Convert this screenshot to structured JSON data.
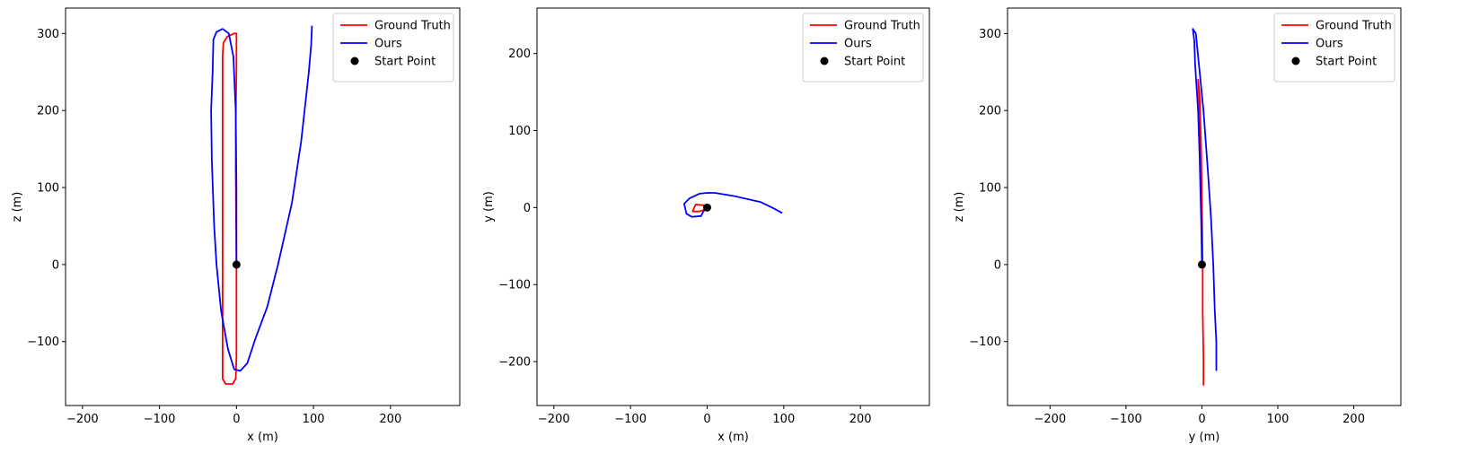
{
  "chart_data": [
    {
      "type": "line",
      "xlabel": "x (m)",
      "ylabel": "z (m)",
      "xlim": [
        -222,
        290
      ],
      "ylim": [
        -183,
        333
      ],
      "xticks": [
        -200,
        -100,
        0,
        100,
        200
      ],
      "yticks": [
        -100,
        0,
        100,
        200,
        300
      ],
      "xtick_labels": [
        "−200",
        "−100",
        "0",
        "100",
        "200"
      ],
      "ytick_labels": [
        "−100",
        "0",
        "100",
        "200",
        "300"
      ],
      "legend": {
        "position": "top-right",
        "entries": [
          "Ground Truth",
          "Ours",
          "Start Point"
        ]
      },
      "series": [
        {
          "name": "Ground Truth",
          "color": "#ff0000",
          "points": [
            [
              0,
              0
            ],
            [
              -0.5,
              60
            ],
            [
              -1,
              120
            ],
            [
              -1,
              170
            ],
            [
              -0.5,
              220
            ],
            [
              0,
              255
            ],
            [
              0,
              300
            ],
            [
              -3,
              300
            ],
            [
              -12,
              296
            ],
            [
              -17,
              288
            ],
            [
              -18,
              270
            ],
            [
              -18,
              200
            ],
            [
              -18,
              100
            ],
            [
              -18,
              0
            ],
            [
              -18,
              -100
            ],
            [
              -18,
              -148
            ],
            [
              -14,
              -155
            ],
            [
              -5,
              -155
            ],
            [
              -1,
              -148
            ],
            [
              0,
              -120
            ],
            [
              0,
              -60
            ],
            [
              0,
              0
            ]
          ]
        },
        {
          "name": "Ours",
          "color": "#0000ff",
          "points": [
            [
              0,
              0
            ],
            [
              0,
              100
            ],
            [
              -1,
              200
            ],
            [
              -4,
              270
            ],
            [
              -10,
              300
            ],
            [
              -18,
              306
            ],
            [
              -26,
              302
            ],
            [
              -30,
              292
            ],
            [
              -31,
              250
            ],
            [
              -33,
              200
            ],
            [
              -32,
              135
            ],
            [
              -29,
              50
            ],
            [
              -26,
              0
            ],
            [
              -20,
              -60
            ],
            [
              -11,
              -110
            ],
            [
              -3,
              -136
            ],
            [
              5,
              -138
            ],
            [
              14,
              -128
            ],
            [
              25,
              -95
            ],
            [
              40,
              -55
            ],
            [
              54,
              0
            ],
            [
              72,
              80
            ],
            [
              84,
              160
            ],
            [
              94,
              250
            ],
            [
              97,
              285
            ],
            [
              98,
              310
            ]
          ]
        },
        {
          "name": "Start Point",
          "color": "#000000",
          "marker": "circle",
          "points": [
            [
              0,
              0
            ]
          ]
        }
      ]
    },
    {
      "type": "line",
      "xlabel": "x (m)",
      "ylabel": "y (m)",
      "xlim": [
        -222,
        290
      ],
      "ylim": [
        -257,
        259
      ],
      "xticks": [
        -200,
        -100,
        0,
        100,
        200
      ],
      "yticks": [
        -200,
        -100,
        0,
        100,
        200
      ],
      "xtick_labels": [
        "−200",
        "−100",
        "0",
        "100",
        "200"
      ],
      "ytick_labels": [
        "−200",
        "−100",
        "0",
        "100",
        "200"
      ],
      "legend": {
        "position": "top-right",
        "entries": [
          "Ground Truth",
          "Ours",
          "Start Point"
        ]
      },
      "series": [
        {
          "name": "Ground Truth",
          "color": "#ff0000",
          "points": [
            [
              0,
              0
            ],
            [
              -5,
              3
            ],
            [
              -15,
              4
            ],
            [
              -19,
              -5
            ],
            [
              -10,
              -5
            ],
            [
              -4,
              -3
            ],
            [
              0,
              0
            ]
          ]
        },
        {
          "name": "Ours",
          "color": "#0000ff",
          "points": [
            [
              0,
              0
            ],
            [
              -5,
              -5
            ],
            [
              -8,
              -11
            ],
            [
              -20,
              -12
            ],
            [
              -27,
              -8
            ],
            [
              -30,
              5
            ],
            [
              -23,
              12
            ],
            [
              -10,
              18
            ],
            [
              0,
              19
            ],
            [
              10,
              19
            ],
            [
              35,
              15
            ],
            [
              70,
              7
            ],
            [
              85,
              0
            ],
            [
              98,
              -7
            ]
          ]
        },
        {
          "name": "Start Point",
          "color": "#000000",
          "marker": "circle",
          "points": [
            [
              0,
              0
            ]
          ]
        }
      ]
    },
    {
      "type": "line",
      "xlabel": "y (m)",
      "ylabel": "z (m)",
      "xlim": [
        -256,
        262
      ],
      "ylim": [
        -183,
        333
      ],
      "xticks": [
        -200,
        -100,
        0,
        100,
        200
      ],
      "yticks": [
        -100,
        0,
        100,
        200,
        300
      ],
      "xtick_labels": [
        "−200",
        "−100",
        "0",
        "100",
        "200"
      ],
      "ytick_labels": [
        "−100",
        "0",
        "100",
        "200",
        "300"
      ],
      "legend": {
        "position": "top-right",
        "entries": [
          "Ground Truth",
          "Ours",
          "Start Point"
        ]
      },
      "series": [
        {
          "name": "Ground Truth",
          "color": "#ff0000",
          "points": [
            [
              0,
              0
            ],
            [
              0,
              50
            ],
            [
              -1,
              100
            ],
            [
              -2,
              150
            ],
            [
              -3,
              200
            ],
            [
              -5,
              240
            ],
            [
              -3,
              220
            ],
            [
              -1,
              150
            ],
            [
              0,
              80
            ],
            [
              1,
              0
            ],
            [
              1,
              -60
            ],
            [
              2,
              -120
            ],
            [
              2,
              -157
            ]
          ]
        },
        {
          "name": "Ours",
          "color": "#0000ff",
          "points": [
            [
              0,
              0
            ],
            [
              -1,
              60
            ],
            [
              -3,
              140
            ],
            [
              -5,
              200
            ],
            [
              -9,
              260
            ],
            [
              -10,
              290
            ],
            [
              -12,
              306
            ],
            [
              -8,
              300
            ],
            [
              -4,
              260
            ],
            [
              2,
              200
            ],
            [
              8,
              120
            ],
            [
              12,
              60
            ],
            [
              15,
              0
            ],
            [
              17,
              -60
            ],
            [
              19,
              -100
            ],
            [
              19,
              -138
            ]
          ]
        },
        {
          "name": "Start Point",
          "color": "#000000",
          "marker": "circle",
          "points": [
            [
              0,
              0
            ]
          ]
        }
      ]
    }
  ]
}
